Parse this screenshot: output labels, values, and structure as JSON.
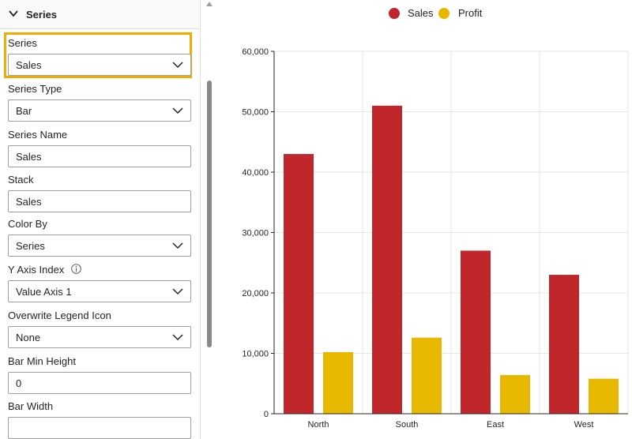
{
  "panel": {
    "header_title": "Series",
    "fields": {
      "series_label": "Series",
      "series_value": "Sales",
      "series_type_label": "Series Type",
      "series_type_value": "Bar",
      "series_name_label": "Series Name",
      "series_name_value": "Sales",
      "stack_label": "Stack",
      "stack_value": "Sales",
      "color_by_label": "Color By",
      "color_by_value": "Series",
      "y_axis_index_label": "Y Axis Index",
      "y_axis_index_value": "Value Axis 1",
      "overwrite_legend_icon_label": "Overwrite Legend Icon",
      "overwrite_legend_icon_value": "None",
      "bar_min_height_label": "Bar Min Height",
      "bar_min_height_value": "0",
      "bar_width_label": "Bar Width",
      "bar_width_value": ""
    }
  },
  "colors": {
    "sales": "#c0272d",
    "profit": "#e8b800",
    "highlight": "#f2a900"
  },
  "chart_data": {
    "type": "bar",
    "categories": [
      "North",
      "South",
      "East",
      "West"
    ],
    "series": [
      {
        "name": "Sales",
        "values": [
          43000,
          51000,
          27000,
          23000
        ]
      },
      {
        "name": "Profit",
        "values": [
          10200,
          12600,
          6400,
          5800
        ]
      }
    ],
    "ylim": [
      0,
      60000
    ],
    "yticks": [
      0,
      10000,
      20000,
      30000,
      40000,
      50000,
      60000
    ],
    "ytick_labels": [
      "0",
      "10,000",
      "20,000",
      "30,000",
      "40,000",
      "50,000",
      "60,000"
    ],
    "legend_position": "top-center",
    "grid": true
  }
}
